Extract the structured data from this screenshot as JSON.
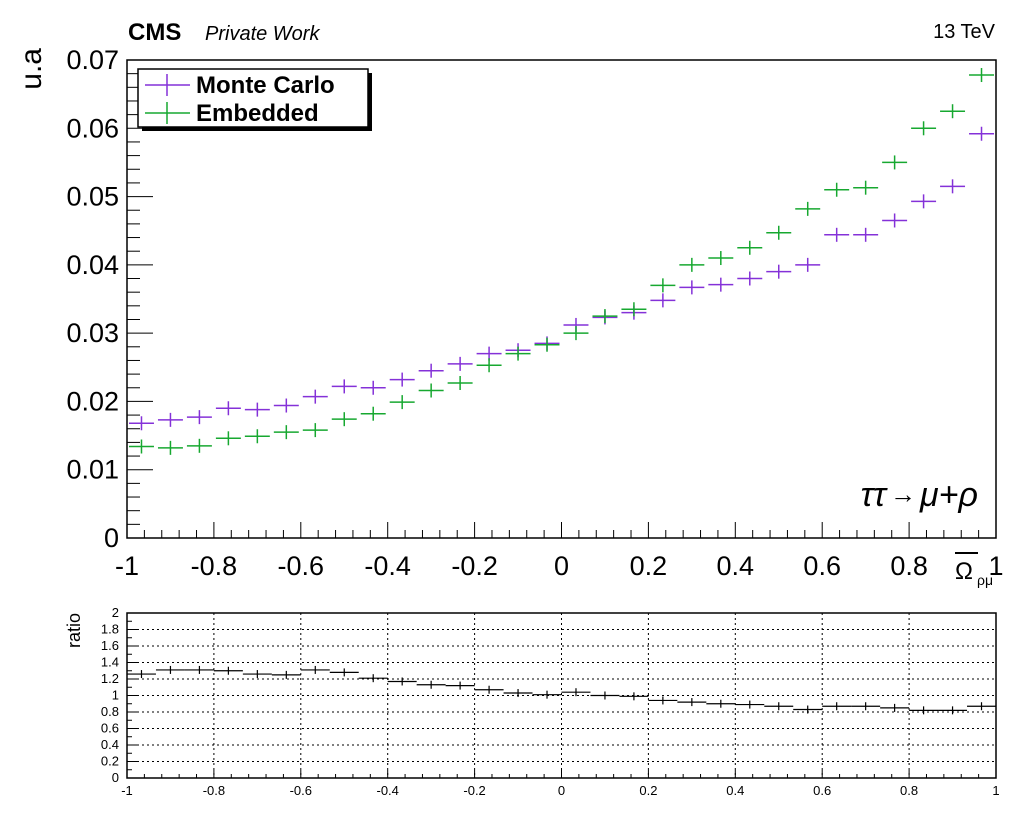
{
  "header": {
    "experiment": "CMS",
    "tag": "Private Work",
    "energy": "13 TeV"
  },
  "legend": {
    "entries": [
      "Monte Carlo",
      "Embedded"
    ]
  },
  "annotation": {
    "process_parts": [
      "ττ",
      "→",
      "μ+ρ"
    ]
  },
  "main_plot": {
    "ylabel": "u.a",
    "xlabel": "Ω̄ρμ",
    "xlabel_main": "Ω",
    "xlabel_sub": "ρμ"
  },
  "ratio_plot": {
    "ylabel": "ratio"
  },
  "colors": {
    "monte_carlo": "#8431d8",
    "embedded": "#17a830",
    "ratio": "#000000"
  },
  "chart_data": [
    {
      "type": "scatter",
      "xlabel": "Ω̄ρμ",
      "ylabel": "u.a",
      "xlim": [
        -1,
        1
      ],
      "ylim": [
        0,
        0.07
      ],
      "x_ticks": [
        "-1",
        "-0.8",
        "-0.6",
        "-0.4",
        "-0.2",
        "0",
        "0.2",
        "0.4",
        "0.6",
        "0.8",
        "1"
      ],
      "y_ticks": [
        "0",
        "0.01",
        "0.02",
        "0.03",
        "0.04",
        "0.05",
        "0.06",
        "0.07"
      ],
      "bins": 30,
      "legend_position": "top-left",
      "series": [
        {
          "name": "Monte Carlo",
          "values": [
            0.0168,
            0.0173,
            0.0177,
            0.019,
            0.0188,
            0.0194,
            0.0207,
            0.0222,
            0.022,
            0.0232,
            0.0245,
            0.0255,
            0.027,
            0.0275,
            0.0285,
            0.0312,
            0.0323,
            0.033,
            0.0348,
            0.0367,
            0.0371,
            0.038,
            0.039,
            0.04,
            0.0444,
            0.0444,
            0.0465,
            0.0493,
            0.0515,
            0.0592
          ]
        },
        {
          "name": "Embedded",
          "values": [
            0.0134,
            0.0132,
            0.0135,
            0.0146,
            0.0149,
            0.0155,
            0.0158,
            0.0174,
            0.0182,
            0.0199,
            0.0216,
            0.0227,
            0.0253,
            0.027,
            0.0283,
            0.03,
            0.0325,
            0.0335,
            0.037,
            0.04,
            0.041,
            0.0425,
            0.0447,
            0.0482,
            0.051,
            0.0513,
            0.055,
            0.06,
            0.0625,
            0.0678
          ]
        }
      ]
    },
    {
      "type": "line",
      "ylabel": "ratio",
      "xlim": [
        -1,
        1
      ],
      "ylim": [
        0,
        2
      ],
      "grid": true,
      "x_ticks": [
        "-1",
        "-0.8",
        "-0.6",
        "-0.4",
        "-0.2",
        "0",
        "0.2",
        "0.4",
        "0.6",
        "0.8",
        "1"
      ],
      "y_ticks": [
        "0",
        "0.2",
        "0.4",
        "0.6",
        "0.8",
        "1",
        "1.2",
        "1.4",
        "1.6",
        "1.8",
        "2"
      ],
      "bins": 30,
      "series": [
        {
          "values": [
            1.26,
            1.31,
            1.31,
            1.3,
            1.26,
            1.25,
            1.31,
            1.28,
            1.21,
            1.17,
            1.13,
            1.12,
            1.07,
            1.03,
            1.01,
            1.04,
            1.0,
            0.99,
            0.94,
            0.92,
            0.9,
            0.89,
            0.87,
            0.83,
            0.87,
            0.87,
            0.85,
            0.82,
            0.82,
            0.87
          ]
        }
      ]
    }
  ]
}
